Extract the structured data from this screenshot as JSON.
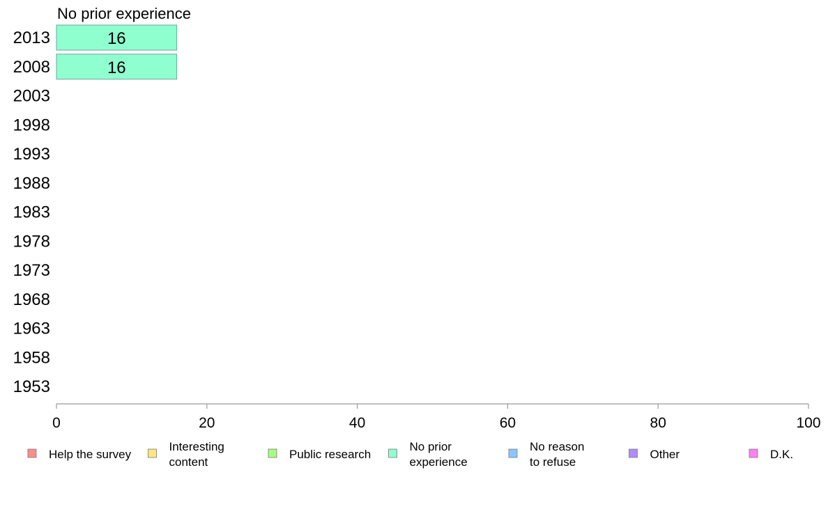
{
  "chart_data": {
    "type": "bar",
    "orientation": "horizontal",
    "panel_title": "No prior experience",
    "categories": [
      "2013",
      "2008",
      "2003",
      "1998",
      "1993",
      "1988",
      "1983",
      "1978",
      "1973",
      "1968",
      "1963",
      "1958",
      "1953"
    ],
    "series": [
      {
        "name": "No prior experience",
        "color": "#8fffd0",
        "values": [
          16,
          16,
          null,
          null,
          null,
          null,
          null,
          null,
          null,
          null,
          null,
          null,
          null
        ]
      }
    ],
    "xlim": [
      0,
      100
    ],
    "xticks": [
      "0",
      "20",
      "40",
      "60",
      "80",
      "100"
    ],
    "grid": false,
    "legend_position": "bottom",
    "legend": [
      {
        "lines": [
          "Help the survey"
        ],
        "color": "#ff8c8c"
      },
      {
        "lines": [
          "Interesting",
          "content"
        ],
        "color": "#ffe680"
      },
      {
        "lines": [
          "Public research"
        ],
        "color": "#a6ff80"
      },
      {
        "lines": [
          "No prior",
          "experience"
        ],
        "color": "#8fffd0"
      },
      {
        "lines": [
          "No reason",
          "to refuse"
        ],
        "color": "#8cc6ff"
      },
      {
        "lines": [
          "Other"
        ],
        "color": "#b08cff"
      },
      {
        "lines": [
          "D.K."
        ],
        "color": "#ff80f2"
      }
    ]
  }
}
